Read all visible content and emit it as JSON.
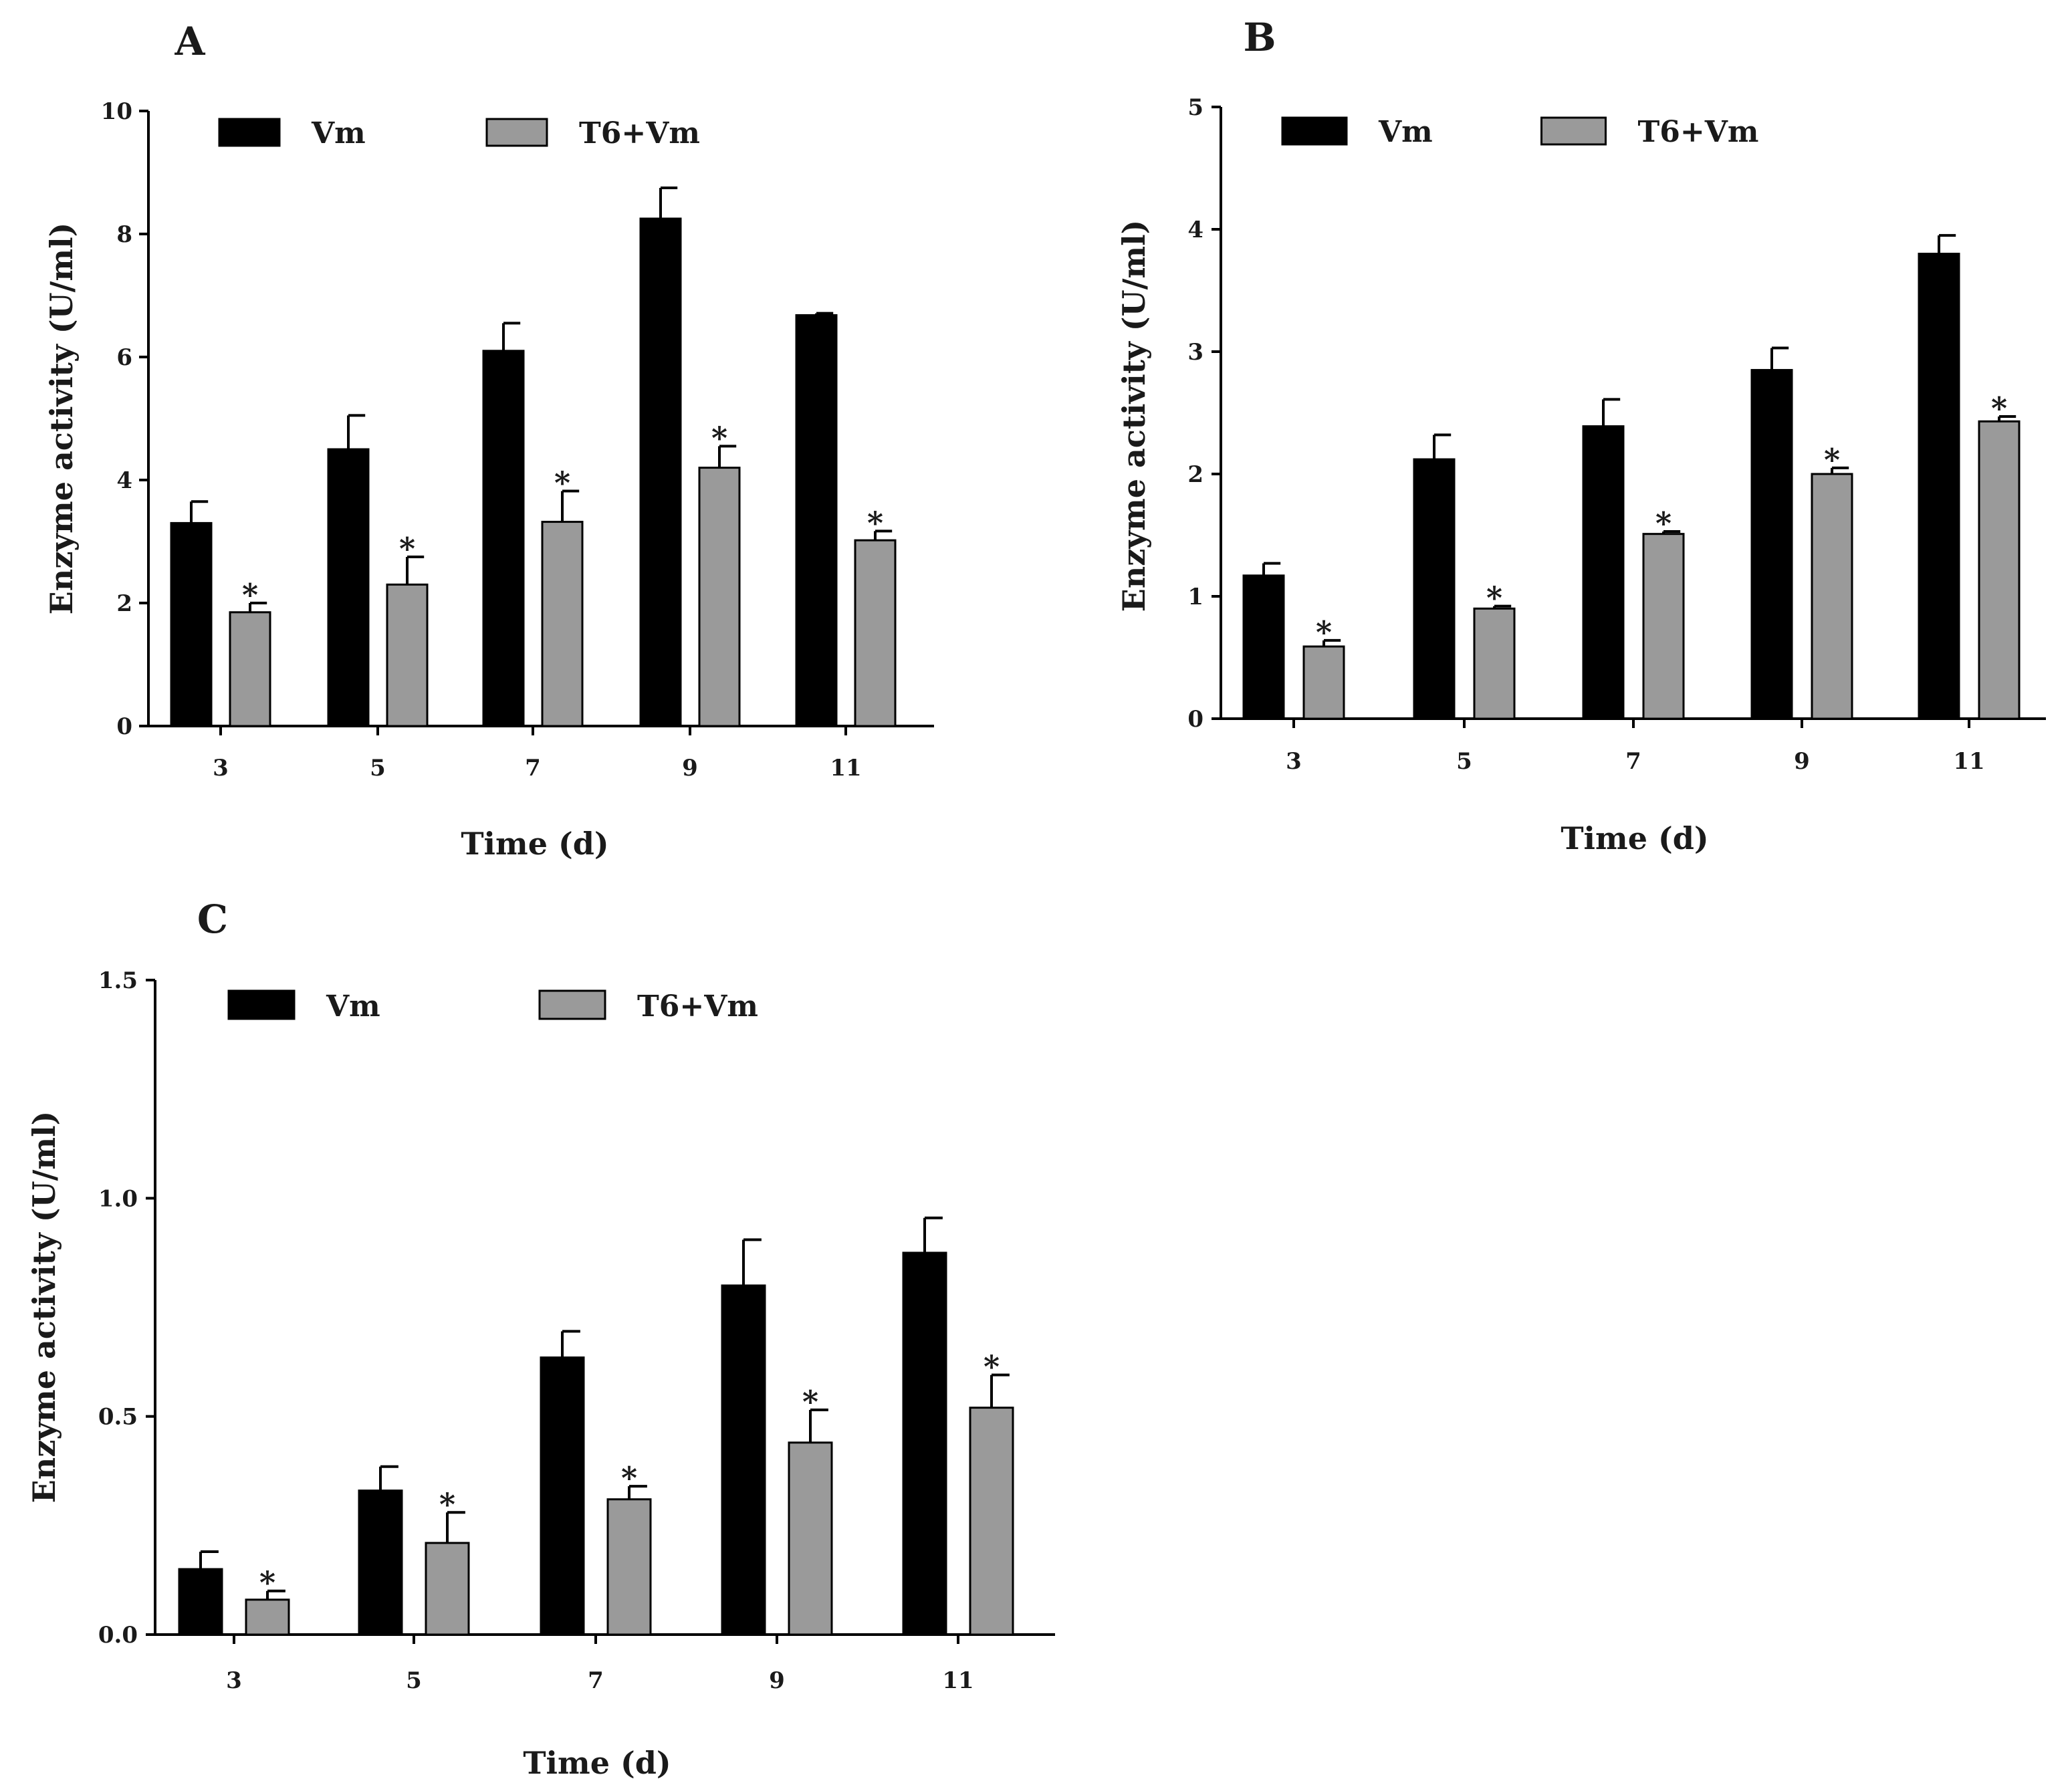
{
  "chart_data": [
    {
      "panel": "A",
      "type": "bar",
      "xlabel": "Time (d)",
      "ylabel": "Enzyme activity (U/ml)",
      "ylim": [
        0,
        10
      ],
      "yticks": [
        "0",
        "2",
        "4",
        "6",
        "8",
        "10"
      ],
      "categories": [
        "3",
        "5",
        "7",
        "9",
        "11"
      ],
      "legend_position": "top-left",
      "series": [
        {
          "name": "Vm",
          "color": "#000000",
          "values": [
            3.3,
            4.5,
            6.1,
            8.25,
            6.68
          ],
          "errors": [
            0.35,
            0.55,
            0.45,
            0.5,
            0.03
          ],
          "significant": [
            false,
            false,
            false,
            false,
            false
          ]
        },
        {
          "name": "T6+Vm",
          "color": "#9a9a9a",
          "values": [
            1.85,
            2.3,
            3.32,
            4.2,
            3.02
          ],
          "errors": [
            0.15,
            0.45,
            0.5,
            0.35,
            0.15
          ],
          "significant": [
            true,
            true,
            true,
            true,
            true
          ]
        }
      ],
      "significance_marker": "*"
    },
    {
      "panel": "B",
      "type": "bar",
      "xlabel": "Time (d)",
      "ylabel": "Enzyme activity (U/ml)",
      "ylim": [
        0,
        5
      ],
      "yticks": [
        "0",
        "1",
        "2",
        "3",
        "4",
        "5"
      ],
      "categories": [
        "3",
        "5",
        "7",
        "9",
        "11"
      ],
      "legend_position": "top-left",
      "series": [
        {
          "name": "Vm",
          "color": "#000000",
          "values": [
            1.17,
            2.12,
            2.39,
            2.85,
            3.8
          ],
          "errors": [
            0.1,
            0.2,
            0.22,
            0.18,
            0.15
          ],
          "significant": [
            false,
            false,
            false,
            false,
            false
          ]
        },
        {
          "name": "T6+Vm",
          "color": "#9a9a9a",
          "values": [
            0.59,
            0.9,
            1.51,
            2.0,
            2.43
          ],
          "errors": [
            0.05,
            0.02,
            0.02,
            0.05,
            0.04
          ],
          "significant": [
            true,
            true,
            true,
            true,
            true
          ]
        }
      ],
      "significance_marker": "*"
    },
    {
      "panel": "C",
      "type": "bar",
      "xlabel": "Time (d)",
      "ylabel": "Enzyme activity (U/ml)",
      "ylim": [
        0,
        1.5
      ],
      "yticks": [
        "0.0",
        "0.5",
        "1.0",
        "1.5"
      ],
      "categories": [
        "3",
        "5",
        "7",
        "9",
        "11"
      ],
      "legend_position": "top-left",
      "series": [
        {
          "name": "Vm",
          "color": "#000000",
          "values": [
            0.15,
            0.33,
            0.635,
            0.8,
            0.875
          ],
          "errors": [
            0.04,
            0.055,
            0.06,
            0.105,
            0.08
          ],
          "significant": [
            false,
            false,
            false,
            false,
            false
          ]
        },
        {
          "name": "T6+Vm",
          "color": "#9a9a9a",
          "values": [
            0.08,
            0.21,
            0.31,
            0.44,
            0.52
          ],
          "errors": [
            0.02,
            0.07,
            0.03,
            0.075,
            0.075
          ],
          "significant": [
            true,
            true,
            true,
            true,
            true
          ]
        }
      ],
      "significance_marker": "*"
    }
  ]
}
